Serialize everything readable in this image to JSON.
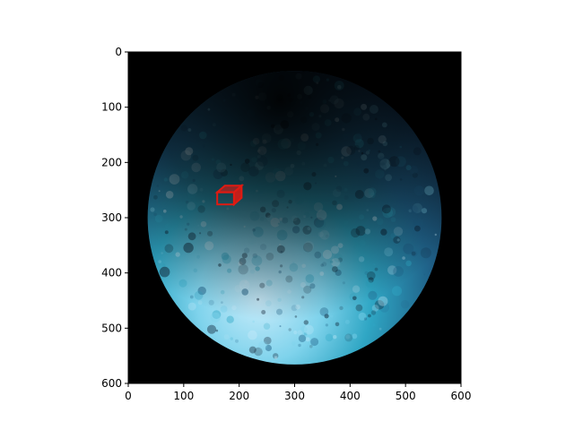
{
  "chart_data": {
    "type": "image",
    "title": "",
    "xlabel": "",
    "ylabel": "",
    "xlim": [
      0,
      600
    ],
    "ylim": [
      600,
      0
    ],
    "y_inverted": true,
    "grid": false,
    "x_ticks": [
      0,
      100,
      200,
      300,
      400,
      500,
      600
    ],
    "y_ticks": [
      0,
      100,
      200,
      300,
      400,
      500,
      600
    ],
    "image_content": {
      "subject": "planet",
      "background_color": "#000000",
      "planet_center": [
        300,
        300
      ],
      "planet_radius": 265,
      "planet_colors": [
        "#0b1a2c",
        "#1f5f86",
        "#2fa6c4",
        "#7fd3ec",
        "#c9ecfb"
      ],
      "marker": {
        "color": "#e11a12",
        "x_range": [
          155,
          210
        ],
        "y_range": [
          240,
          280
        ]
      }
    }
  }
}
